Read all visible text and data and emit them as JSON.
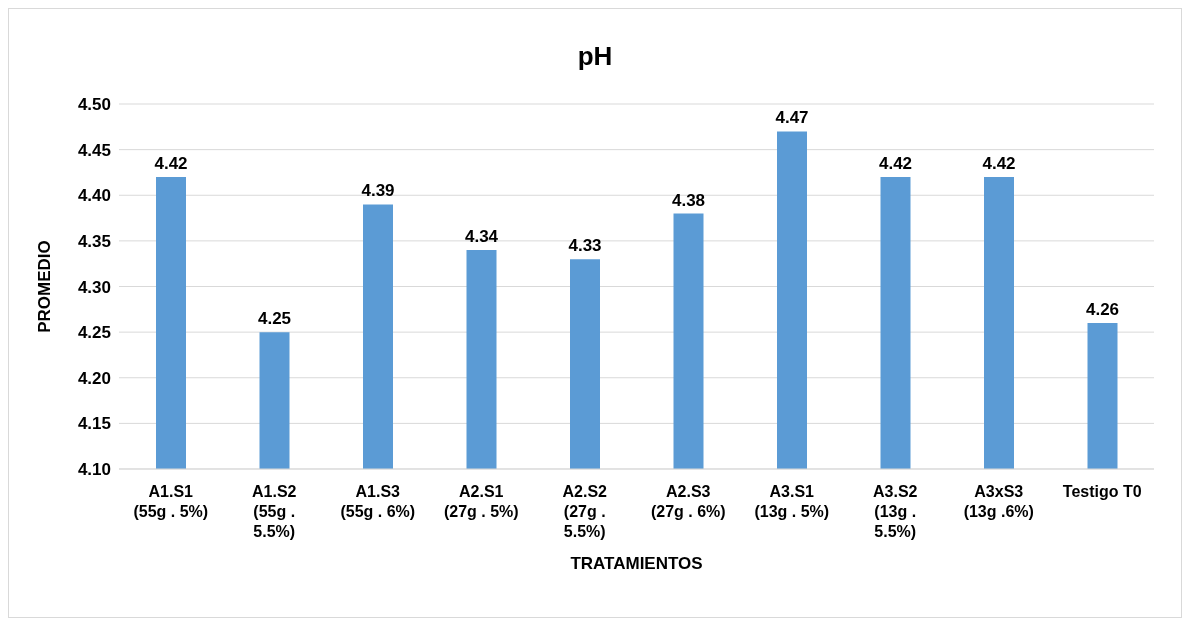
{
  "chart_data": {
    "type": "bar",
    "title": "pH",
    "xlabel": "TRATAMIENTOS",
    "ylabel": "PROMEDIO",
    "categories": [
      "A1.S1 (55g . 5%)",
      "A1.S2 (55g . 5.5%)",
      "A1.S3 (55g . 6%)",
      "A2.S1 (27g . 5%)",
      "A2.S2 (27g . 5.5%)",
      "A2.S3 (27g . 6%)",
      "A3.S1 (13g . 5%)",
      "A3.S2 (13g . 5.5%)",
      "A3xS3 (13g .6%)",
      "Testigo T0"
    ],
    "values": [
      4.42,
      4.25,
      4.39,
      4.34,
      4.33,
      4.38,
      4.47,
      4.42,
      4.42,
      4.26
    ],
    "color": "#5b9bd5",
    "ylim": [
      4.1,
      4.5
    ],
    "yticks": [
      {
        "value": 4.1,
        "label": "4.10"
      },
      {
        "value": 4.15,
        "label": "4.15"
      },
      {
        "value": 4.2,
        "label": "4.20"
      },
      {
        "value": 4.25,
        "label": "4.25"
      },
      {
        "value": 4.3,
        "label": "4.30"
      },
      {
        "value": 4.35,
        "label": "4.35"
      },
      {
        "value": 4.4,
        "label": "4.40"
      },
      {
        "value": 4.45,
        "label": "4.45"
      },
      {
        "value": 4.5,
        "label": "4.50"
      }
    ],
    "grid": "y",
    "data_labels": true
  }
}
